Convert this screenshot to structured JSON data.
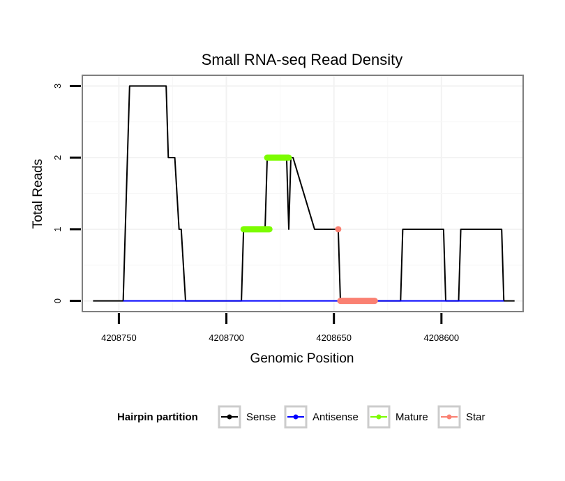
{
  "chart_data": {
    "type": "line",
    "title": "Small RNA-seq Read Density",
    "xlabel": "Genomic Position",
    "ylabel": "Total Reads",
    "x_reversed": true,
    "xlim": [
      4208767,
      4208562
    ],
    "ylim": [
      -0.15,
      3.15
    ],
    "x_ticks": [
      4208750,
      4208700,
      4208650,
      4208600
    ],
    "x_tick_labels": [
      "4208750",
      "4208700",
      "4208650",
      "4208600"
    ],
    "y_ticks": [
      0,
      1,
      2,
      3
    ],
    "y_tick_labels": [
      "0",
      "1",
      "2",
      "3"
    ],
    "grid": true,
    "legend": {
      "title": "Hairpin partition",
      "position": "bottom",
      "entries": [
        {
          "label": "Sense",
          "color": "#000000"
        },
        {
          "label": "Antisense",
          "color": "#0000ff"
        },
        {
          "label": "Mature",
          "color": "#7cfc00"
        },
        {
          "label": "Star",
          "color": "#fa8072"
        }
      ]
    },
    "series": [
      {
        "name": "Sense",
        "color": "#000000",
        "x": [
          4208762,
          4208748,
          4208746,
          4208745,
          4208728,
          4208727,
          4208724,
          4208722,
          4208721,
          4208719,
          4208693,
          4208692,
          4208682,
          4208681,
          4208672,
          4208671,
          4208670,
          4208669,
          4208659,
          4208658,
          4208648,
          4208647,
          4208619,
          4208618,
          4208599,
          4208598,
          4208592,
          4208591,
          4208572,
          4208571,
          4208566
        ],
        "y": [
          0,
          0,
          2,
          3,
          3,
          2,
          2,
          1,
          1,
          0,
          0,
          1,
          1,
          2,
          2,
          1,
          2,
          2,
          1,
          1,
          1,
          0,
          0,
          1,
          1,
          0,
          0,
          1,
          1,
          0,
          0
        ]
      },
      {
        "name": "Antisense",
        "color": "#0000ff",
        "x": [
          4208748,
          4208571
        ],
        "y": [
          0,
          0
        ]
      },
      {
        "name": "Mature",
        "color": "#7cfc00",
        "segments": [
          {
            "x": [
              4208692,
              4208680
            ],
            "y": [
              1,
              1
            ]
          },
          {
            "x": [
              4208681,
              4208671
            ],
            "y": [
              2,
              2
            ]
          }
        ]
      },
      {
        "name": "Star",
        "color": "#fa8072",
        "points": [
          {
            "x": 4208648,
            "y": 1
          }
        ],
        "segments": [
          {
            "x": [
              4208647,
              4208631
            ],
            "y": [
              0,
              0
            ]
          }
        ]
      }
    ]
  }
}
